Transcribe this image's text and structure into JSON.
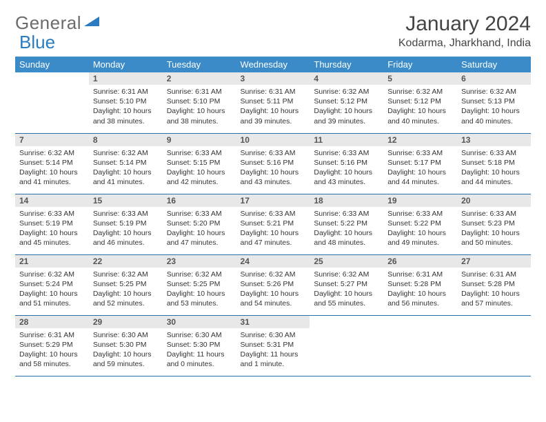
{
  "logo": {
    "word1": "General",
    "word2": "Blue"
  },
  "title": "January 2024",
  "location": "Kodarma, Jharkhand, India",
  "colors": {
    "header_bg": "#3b8bc8",
    "header_fg": "#ffffff",
    "daynum_bg": "#e8e8e8",
    "row_border": "#2a6fa8",
    "logo_gray": "#6b6b6b",
    "logo_blue": "#2a7bbf"
  },
  "weekdays": [
    "Sunday",
    "Monday",
    "Tuesday",
    "Wednesday",
    "Thursday",
    "Friday",
    "Saturday"
  ],
  "first_weekday_index": 1,
  "days": [
    {
      "n": 1,
      "sunrise": "6:31 AM",
      "sunset": "5:10 PM",
      "daylight": "10 hours and 38 minutes."
    },
    {
      "n": 2,
      "sunrise": "6:31 AM",
      "sunset": "5:10 PM",
      "daylight": "10 hours and 38 minutes."
    },
    {
      "n": 3,
      "sunrise": "6:31 AM",
      "sunset": "5:11 PM",
      "daylight": "10 hours and 39 minutes."
    },
    {
      "n": 4,
      "sunrise": "6:32 AM",
      "sunset": "5:12 PM",
      "daylight": "10 hours and 39 minutes."
    },
    {
      "n": 5,
      "sunrise": "6:32 AM",
      "sunset": "5:12 PM",
      "daylight": "10 hours and 40 minutes."
    },
    {
      "n": 6,
      "sunrise": "6:32 AM",
      "sunset": "5:13 PM",
      "daylight": "10 hours and 40 minutes."
    },
    {
      "n": 7,
      "sunrise": "6:32 AM",
      "sunset": "5:14 PM",
      "daylight": "10 hours and 41 minutes."
    },
    {
      "n": 8,
      "sunrise": "6:32 AM",
      "sunset": "5:14 PM",
      "daylight": "10 hours and 41 minutes."
    },
    {
      "n": 9,
      "sunrise": "6:33 AM",
      "sunset": "5:15 PM",
      "daylight": "10 hours and 42 minutes."
    },
    {
      "n": 10,
      "sunrise": "6:33 AM",
      "sunset": "5:16 PM",
      "daylight": "10 hours and 43 minutes."
    },
    {
      "n": 11,
      "sunrise": "6:33 AM",
      "sunset": "5:16 PM",
      "daylight": "10 hours and 43 minutes."
    },
    {
      "n": 12,
      "sunrise": "6:33 AM",
      "sunset": "5:17 PM",
      "daylight": "10 hours and 44 minutes."
    },
    {
      "n": 13,
      "sunrise": "6:33 AM",
      "sunset": "5:18 PM",
      "daylight": "10 hours and 44 minutes."
    },
    {
      "n": 14,
      "sunrise": "6:33 AM",
      "sunset": "5:19 PM",
      "daylight": "10 hours and 45 minutes."
    },
    {
      "n": 15,
      "sunrise": "6:33 AM",
      "sunset": "5:19 PM",
      "daylight": "10 hours and 46 minutes."
    },
    {
      "n": 16,
      "sunrise": "6:33 AM",
      "sunset": "5:20 PM",
      "daylight": "10 hours and 47 minutes."
    },
    {
      "n": 17,
      "sunrise": "6:33 AM",
      "sunset": "5:21 PM",
      "daylight": "10 hours and 47 minutes."
    },
    {
      "n": 18,
      "sunrise": "6:33 AM",
      "sunset": "5:22 PM",
      "daylight": "10 hours and 48 minutes."
    },
    {
      "n": 19,
      "sunrise": "6:33 AM",
      "sunset": "5:22 PM",
      "daylight": "10 hours and 49 minutes."
    },
    {
      "n": 20,
      "sunrise": "6:33 AM",
      "sunset": "5:23 PM",
      "daylight": "10 hours and 50 minutes."
    },
    {
      "n": 21,
      "sunrise": "6:32 AM",
      "sunset": "5:24 PM",
      "daylight": "10 hours and 51 minutes."
    },
    {
      "n": 22,
      "sunrise": "6:32 AM",
      "sunset": "5:25 PM",
      "daylight": "10 hours and 52 minutes."
    },
    {
      "n": 23,
      "sunrise": "6:32 AM",
      "sunset": "5:25 PM",
      "daylight": "10 hours and 53 minutes."
    },
    {
      "n": 24,
      "sunrise": "6:32 AM",
      "sunset": "5:26 PM",
      "daylight": "10 hours and 54 minutes."
    },
    {
      "n": 25,
      "sunrise": "6:32 AM",
      "sunset": "5:27 PM",
      "daylight": "10 hours and 55 minutes."
    },
    {
      "n": 26,
      "sunrise": "6:31 AM",
      "sunset": "5:28 PM",
      "daylight": "10 hours and 56 minutes."
    },
    {
      "n": 27,
      "sunrise": "6:31 AM",
      "sunset": "5:28 PM",
      "daylight": "10 hours and 57 minutes."
    },
    {
      "n": 28,
      "sunrise": "6:31 AM",
      "sunset": "5:29 PM",
      "daylight": "10 hours and 58 minutes."
    },
    {
      "n": 29,
      "sunrise": "6:30 AM",
      "sunset": "5:30 PM",
      "daylight": "10 hours and 59 minutes."
    },
    {
      "n": 30,
      "sunrise": "6:30 AM",
      "sunset": "5:30 PM",
      "daylight": "11 hours and 0 minutes."
    },
    {
      "n": 31,
      "sunrise": "6:30 AM",
      "sunset": "5:31 PM",
      "daylight": "11 hours and 1 minute."
    }
  ],
  "labels": {
    "sunrise": "Sunrise: ",
    "sunset": "Sunset: ",
    "daylight": "Daylight: "
  }
}
